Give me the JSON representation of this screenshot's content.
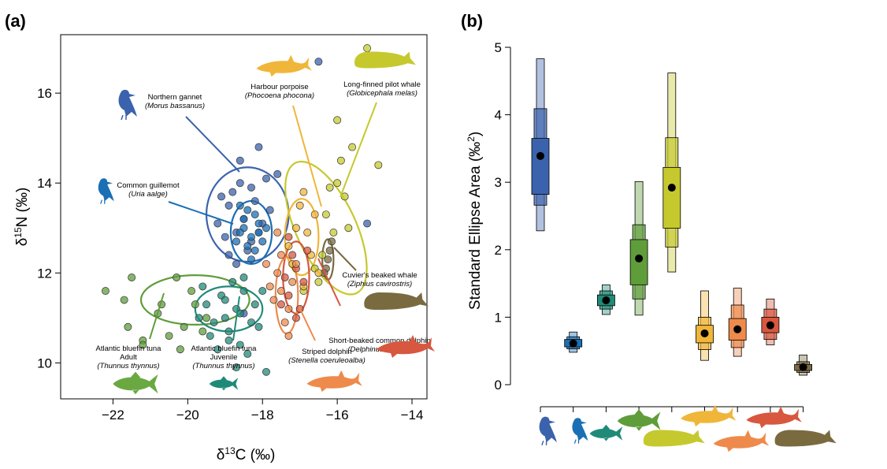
{
  "chart_data": [
    {
      "panel": "(a)",
      "type": "scatter",
      "xlabel": "δ13C (‰)",
      "ylabel": "δ15N (‰)",
      "xlim": [
        -23.4,
        -13.6
      ],
      "ylim": [
        9.2,
        17.3
      ],
      "xticks": [
        -22,
        -20,
        -18,
        -16,
        -14
      ],
      "yticks": [
        10,
        12,
        14,
        16
      ],
      "grid": false,
      "series": [
        {
          "key": "gannet",
          "color": "#3b63ad",
          "ellipse": {
            "cx": -18.4,
            "cy": 13.3,
            "rx": 1.1,
            "ry": 1.05,
            "angle": 0
          },
          "points": [
            [
              -18.9,
              13.5
            ],
            [
              -18.7,
              12.9
            ],
            [
              -18.5,
              13.2
            ],
            [
              -18.3,
              12.7
            ],
            [
              -18.6,
              14.0
            ],
            [
              -18.8,
              13.8
            ],
            [
              -18.2,
              13.6
            ],
            [
              -18.4,
              12.5
            ],
            [
              -18.0,
              13.1
            ],
            [
              -19.0,
              12.8
            ],
            [
              -18.6,
              14.5
            ],
            [
              -18.1,
              14.8
            ],
            [
              -17.8,
              13.4
            ],
            [
              -18.9,
              12.4
            ],
            [
              -19.2,
              13.1
            ],
            [
              -18.3,
              13.9
            ],
            [
              -17.6,
              14.2
            ],
            [
              -18.7,
              12.2
            ],
            [
              -18.1,
              12.9
            ],
            [
              -19.1,
              13.7
            ],
            [
              -15.2,
              13.1
            ],
            [
              -16.5,
              16.7
            ],
            [
              -18.5,
              11.1
            ],
            [
              -17.9,
              14.1
            ]
          ]
        },
        {
          "key": "guillemot",
          "color": "#1a6fb5",
          "ellipse": {
            "cx": -18.3,
            "cy": 12.9,
            "rx": 0.55,
            "ry": 0.7,
            "angle": 0
          },
          "points": [
            [
              -18.5,
              13.0
            ],
            [
              -18.3,
              12.8
            ],
            [
              -18.1,
              13.1
            ],
            [
              -18.4,
              12.6
            ],
            [
              -18.2,
              13.3
            ],
            [
              -18.6,
              12.9
            ],
            [
              -18.0,
              12.7
            ],
            [
              -18.4,
              13.4
            ],
            [
              -18.7,
              12.7
            ],
            [
              -18.2,
              12.5
            ],
            [
              -18.5,
              13.2
            ],
            [
              -18.3,
              12.3
            ],
            [
              -17.9,
              13.0
            ],
            [
              -18.6,
              13.5
            ],
            [
              -18.1,
              12.9
            ]
          ]
        },
        {
          "key": "tuna-adult",
          "color": "#5f9d3a",
          "ellipse": {
            "cx": -19.8,
            "cy": 11.4,
            "rx": 1.45,
            "ry": 0.55,
            "angle": 0
          },
          "points": [
            [
              -22.2,
              11.6
            ],
            [
              -21.7,
              11.4
            ],
            [
              -21.5,
              11.9
            ],
            [
              -21.2,
              10.5
            ],
            [
              -20.8,
              11.1
            ],
            [
              -20.5,
              10.6
            ],
            [
              -20.3,
              11.9
            ],
            [
              -20.1,
              10.8
            ],
            [
              -19.8,
              11.3
            ],
            [
              -19.6,
              10.7
            ],
            [
              -19.9,
              11.6
            ],
            [
              -20.7,
              11.3
            ],
            [
              -21.6,
              10.8
            ],
            [
              -19.5,
              11.0
            ],
            [
              -20.2,
              10.3
            ],
            [
              -21.2,
              10.4
            ]
          ]
        },
        {
          "key": "tuna-juvenile",
          "color": "#1f8a78",
          "ellipse": {
            "cx": -18.9,
            "cy": 11.2,
            "rx": 0.9,
            "ry": 0.5,
            "angle": 0
          },
          "points": [
            [
              -19.5,
              11.3
            ],
            [
              -19.3,
              10.9
            ],
            [
              -19.1,
              11.5
            ],
            [
              -18.9,
              10.7
            ],
            [
              -18.7,
              11.2
            ],
            [
              -18.5,
              11.6
            ],
            [
              -18.3,
              10.9
            ],
            [
              -19.0,
              11.0
            ],
            [
              -18.8,
              11.8
            ],
            [
              -19.4,
              10.6
            ],
            [
              -18.6,
              10.4
            ],
            [
              -18.2,
              11.3
            ],
            [
              -19.6,
              11.7
            ],
            [
              -18.4,
              10.2
            ],
            [
              -19.2,
              10.3
            ],
            [
              -18.0,
              11.6
            ],
            [
              -18.1,
              10.8
            ],
            [
              -19.7,
              11.0
            ],
            [
              -18.5,
              11.9
            ],
            [
              -18.7,
              9.9
            ],
            [
              -17.9,
              9.8
            ],
            [
              -19.0,
              11.4
            ],
            [
              -18.6,
              11.1
            ],
            [
              -18.9,
              10.5
            ]
          ]
        },
        {
          "key": "cuvier",
          "color": "#7a6a40",
          "ellipse": {
            "cx": -16.25,
            "cy": 12.3,
            "rx": 0.15,
            "ry": 0.45,
            "angle": 0
          },
          "points": [
            [
              -16.3,
              12.1
            ],
            [
              -16.2,
              12.5
            ],
            [
              -16.25,
              12.3
            ],
            [
              -16.15,
              12.7
            ],
            [
              -16.35,
              12.0
            ]
          ]
        },
        {
          "key": "pilot-whale",
          "color": "#c6c92e",
          "ellipse": {
            "cx": -16.3,
            "cy": 13.0,
            "rx": 0.8,
            "ry": 1.6,
            "angle": 25
          },
          "points": [
            [
              -15.2,
              17.0
            ],
            [
              -15.9,
              14.5
            ],
            [
              -16.0,
              14.0
            ],
            [
              -14.9,
              14.4
            ],
            [
              -16.2,
              13.9
            ],
            [
              -15.7,
              13.0
            ],
            [
              -16.6,
              12.1
            ],
            [
              -16.1,
              12.9
            ],
            [
              -16.4,
              12.4
            ],
            [
              -16.5,
              11.8
            ],
            [
              -15.8,
              13.7
            ],
            [
              -16.3,
              13.3
            ],
            [
              -16.9,
              11.6
            ],
            [
              -16.0,
              15.4
            ],
            [
              -15.6,
              14.8
            ]
          ]
        },
        {
          "key": "harbour-porpoise",
          "color": "#f0b63a",
          "ellipse": {
            "cx": -16.95,
            "cy": 12.8,
            "rx": 0.45,
            "ry": 0.85,
            "angle": 0
          },
          "points": [
            [
              -17.0,
              13.5
            ],
            [
              -16.8,
              12.9
            ],
            [
              -17.2,
              12.2
            ],
            [
              -16.9,
              13.8
            ],
            [
              -16.7,
              12.4
            ],
            [
              -17.1,
              13.0
            ],
            [
              -16.6,
              13.3
            ],
            [
              -17.3,
              12.6
            ],
            [
              -16.5,
              12.0
            ],
            [
              -16.9,
              11.7
            ]
          ]
        },
        {
          "key": "common-dolphin",
          "color": "#d8573f",
          "ellipse": {
            "cx": -17.1,
            "cy": 11.9,
            "rx": 0.35,
            "ry": 0.8,
            "angle": 0
          },
          "points": [
            [
              -17.3,
              11.5
            ],
            [
              -17.1,
              12.1
            ],
            [
              -16.9,
              11.8
            ],
            [
              -17.2,
              12.4
            ],
            [
              -17.0,
              11.2
            ],
            [
              -17.4,
              11.9
            ],
            [
              -16.8,
              12.5
            ],
            [
              -17.5,
              11.3
            ],
            [
              -17.1,
              11.0
            ],
            [
              -17.3,
              12.8
            ]
          ]
        },
        {
          "key": "striped-dolphin",
          "color": "#ee8a4b",
          "ellipse": {
            "cx": -17.35,
            "cy": 11.5,
            "rx": 0.3,
            "ry": 0.85,
            "angle": 0
          },
          "points": [
            [
              -17.5,
              11.6
            ],
            [
              -17.3,
              11.2
            ],
            [
              -17.6,
              12.0
            ],
            [
              -17.4,
              10.9
            ],
            [
              -17.2,
              11.8
            ],
            [
              -17.7,
              11.4
            ],
            [
              -17.1,
              12.2
            ],
            [
              -17.8,
              11.7
            ],
            [
              -17.5,
              12.4
            ],
            [
              -17.3,
              10.6
            ],
            [
              -17.9,
              12.2
            ],
            [
              -17.6,
              12.9
            ]
          ]
        }
      ],
      "annotations": [
        {
          "key": "gannet",
          "lines": [
            "Northern gannet"
          ],
          "italic": "(Morus bassanus)"
        },
        {
          "key": "guillemot",
          "lines": [
            "Common guillemot"
          ],
          "italic": "(Uria aalge)"
        },
        {
          "key": "harbour-porpoise",
          "lines": [
            "Harbour porpoise"
          ],
          "italic": "(Phocoena phocona)"
        },
        {
          "key": "pilot-whale",
          "lines": [
            "Long-finned pilot whale"
          ],
          "italic": "(Globicephala melas)"
        },
        {
          "key": "cuvier",
          "lines": [
            "Cuvier's beaked whale"
          ],
          "italic": "(Ziphius cavirostris)"
        },
        {
          "key": "common-dolphin",
          "lines": [
            "Short-beaked common dolphin"
          ],
          "italic": "(Delphinus delphis)"
        },
        {
          "key": "striped-dolphin",
          "lines": [
            "Striped dolphin"
          ],
          "italic": "(Stenella coeruleoalba)"
        },
        {
          "key": "tuna-adult",
          "lines": [
            "Atlantic bluefin tuna",
            "Adult"
          ],
          "italic": "(Thunnus thynnus)"
        },
        {
          "key": "tuna-juvenile",
          "lines": [
            "Atlantic bluefin tuna",
            "Juvenile"
          ],
          "italic": "(Thunnus thynnus)"
        }
      ]
    },
    {
      "panel": "(b)",
      "type": "box",
      "ylabel": "Standard Ellipse Area (‰2)",
      "ylim": [
        0,
        5
      ],
      "yticks": [
        0,
        1,
        2,
        3,
        4,
        5
      ],
      "categories": [
        "gannet",
        "guillemot",
        "tuna-juvenile",
        "tuna-adult",
        "pilot-whale",
        "harbour-porpoise",
        "striped-dolphin",
        "common-dolphin",
        "cuvier"
      ],
      "category_icons": [
        "bird-icon",
        "bird-icon",
        "fish-icon",
        "fish-icon",
        "whale-icon",
        "dolphin-icon",
        "dolphin-icon",
        "dolphin-icon",
        "whale-icon"
      ],
      "colors": [
        "#3b63ad",
        "#1a6fb5",
        "#1f8a78",
        "#5f9d3a",
        "#c6c92e",
        "#f0b63a",
        "#ee8a4b",
        "#d8573f",
        "#7a6a40"
      ],
      "mode": [
        3.39,
        0.61,
        1.25,
        1.87,
        2.92,
        0.76,
        0.82,
        0.88,
        0.26
      ],
      "ci50": [
        [
          2.82,
          3.65
        ],
        [
          0.56,
          0.67
        ],
        [
          1.17,
          1.33
        ],
        [
          1.48,
          2.15
        ],
        [
          2.32,
          3.22
        ],
        [
          0.62,
          0.88
        ],
        [
          0.66,
          0.98
        ],
        [
          0.77,
          1.0
        ],
        [
          0.21,
          0.3
        ]
      ],
      "ci75": [
        [
          2.66,
          4.09
        ],
        [
          0.53,
          0.71
        ],
        [
          1.12,
          1.39
        ],
        [
          1.27,
          2.37
        ],
        [
          2.04,
          3.66
        ],
        [
          0.52,
          1.0
        ],
        [
          0.55,
          1.18
        ],
        [
          0.67,
          1.12
        ],
        [
          0.18,
          0.34
        ]
      ],
      "ci95": [
        [
          2.28,
          4.83
        ],
        [
          0.48,
          0.78
        ],
        [
          1.04,
          1.48
        ],
        [
          1.03,
          3.01
        ],
        [
          1.67,
          4.62
        ],
        [
          0.36,
          1.39
        ],
        [
          0.42,
          1.43
        ],
        [
          0.59,
          1.27
        ],
        [
          0.14,
          0.44
        ]
      ]
    }
  ]
}
